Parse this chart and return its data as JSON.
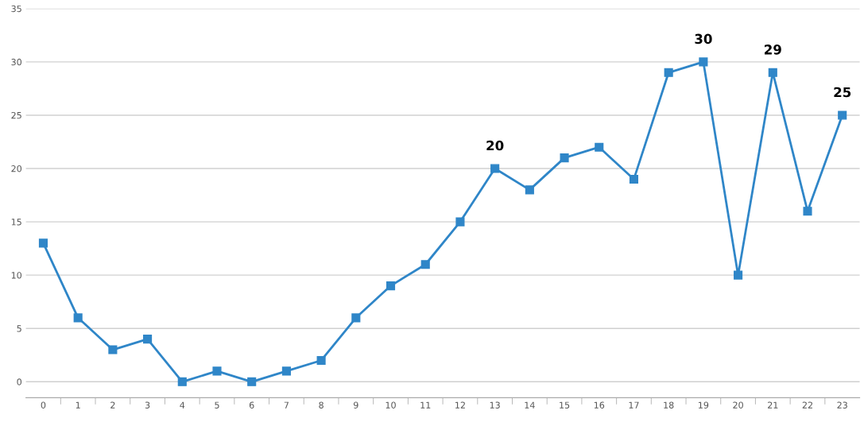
{
  "chart_data": {
    "type": "line",
    "categories": [
      "0",
      "1",
      "2",
      "3",
      "4",
      "5",
      "6",
      "7",
      "8",
      "9",
      "10",
      "11",
      "12",
      "13",
      "14",
      "15",
      "16",
      "17",
      "18",
      "19",
      "20",
      "21",
      "22",
      "23"
    ],
    "series": [
      {
        "color": "#2f86c8",
        "values": [
          13,
          6,
          3,
          4,
          0,
          1,
          0,
          1,
          2,
          6,
          9,
          11,
          15,
          20,
          18,
          21,
          22,
          19,
          29,
          30,
          10,
          29,
          16,
          25
        ],
        "value_labels": [
          null,
          null,
          null,
          null,
          null,
          null,
          null,
          null,
          null,
          null,
          null,
          null,
          null,
          "20",
          null,
          null,
          null,
          null,
          null,
          "30",
          null,
          "29",
          null,
          "25"
        ]
      }
    ],
    "ylim": [
      -1.5,
      35
    ],
    "yticks": [
      0,
      5,
      10,
      15,
      20,
      25,
      30,
      35
    ],
    "grid": "y",
    "marker": "square",
    "line_style": "solid"
  }
}
